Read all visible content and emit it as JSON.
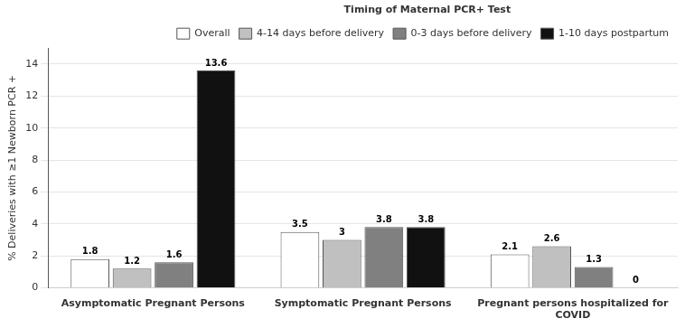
{
  "chart_data": {
    "type": "bar",
    "categories": [
      "Asymptomatic Pregnant Persons",
      "Symptomatic Pregnant Persons",
      "Pregnant persons hospitalized for\nCOVID"
    ],
    "series": [
      {
        "name": "Overall",
        "color": "#ffffff",
        "values": [
          1.8,
          3.5,
          2.1
        ]
      },
      {
        "name": "4-14 days before delivery",
        "color": "#c0c0c0",
        "values": [
          1.2,
          3.0,
          2.6
        ]
      },
      {
        "name": "0-3 days before delivery",
        "color": "#808080",
        "values": [
          1.6,
          3.8,
          1.3
        ]
      },
      {
        "name": "1-10 days postpartum",
        "color": "#111111",
        "values": [
          13.6,
          3.8,
          0.0
        ]
      }
    ],
    "ylabel": "% Deliveries with ≥1 Newborn PCR +",
    "legend_title": "Timing of Maternal PCR+ Test",
    "ylim": [
      0,
      15
    ],
    "yticks": [
      0,
      2,
      4,
      6,
      8,
      10,
      12,
      14
    ],
    "grid": true,
    "legend": "upper right",
    "data_labels": true
  }
}
